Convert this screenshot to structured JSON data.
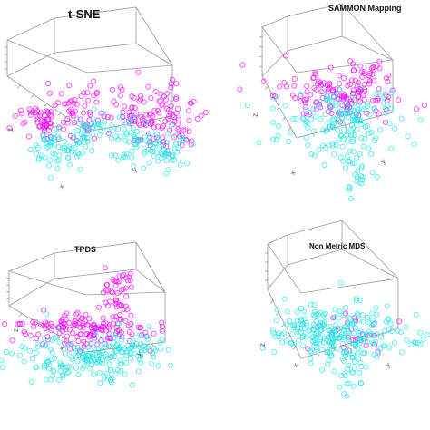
{
  "figure": {
    "background": "#ffffff"
  },
  "colors": {
    "class_a": "#ff00ff",
    "class_b": "#1fe6e6"
  },
  "chart_data": [
    {
      "type": "scatter",
      "title": "t-SNE",
      "xlabel": "x",
      "ylabel": "y",
      "zlabel": "z",
      "projection": "3d",
      "grid": false,
      "legend": "none",
      "series": [
        {
          "color": "#ff00ff",
          "clusters": [
            {
              "cx": 0.22,
              "cy": 0.56,
              "sx": 0.07,
              "sy": 0.06,
              "n": 70
            },
            {
              "cx": 0.4,
              "cy": 0.53,
              "sx": 0.05,
              "sy": 0.07,
              "n": 40
            },
            {
              "cx": 0.62,
              "cy": 0.52,
              "sx": 0.05,
              "sy": 0.06,
              "n": 40
            },
            {
              "cx": 0.79,
              "cy": 0.55,
              "sx": 0.08,
              "sy": 0.07,
              "n": 80
            }
          ]
        },
        {
          "color": "#1fe6e6",
          "clusters": [
            {
              "cx": 0.27,
              "cy": 0.68,
              "sx": 0.06,
              "sy": 0.05,
              "n": 60
            },
            {
              "cx": 0.42,
              "cy": 0.63,
              "sx": 0.05,
              "sy": 0.05,
              "n": 40
            },
            {
              "cx": 0.6,
              "cy": 0.65,
              "sx": 0.05,
              "sy": 0.06,
              "n": 40
            },
            {
              "cx": 0.75,
              "cy": 0.68,
              "sx": 0.07,
              "sy": 0.05,
              "n": 60
            }
          ]
        }
      ]
    },
    {
      "type": "scatter",
      "title": "SAMMON Mapping",
      "xlabel": "x",
      "ylabel": "y",
      "zlabel": "z",
      "projection": "3d",
      "grid": false,
      "legend": "none",
      "series": [
        {
          "color": "#ff00ff",
          "clusters": [
            {
              "cx": 0.58,
              "cy": 0.44,
              "sx": 0.14,
              "sy": 0.06,
              "n": 140
            },
            {
              "cx": 0.72,
              "cy": 0.32,
              "sx": 0.05,
              "sy": 0.03,
              "n": 15
            }
          ]
        },
        {
          "color": "#1fe6e6",
          "clusters": [
            {
              "cx": 0.58,
              "cy": 0.58,
              "sx": 0.14,
              "sy": 0.09,
              "n": 170
            },
            {
              "cx": 0.64,
              "cy": 0.8,
              "sx": 0.04,
              "sy": 0.05,
              "n": 20
            }
          ]
        }
      ]
    },
    {
      "type": "scatter",
      "title": "TPDS",
      "xlabel": "x",
      "ylabel": "y",
      "zlabel": "z",
      "projection": "3d",
      "grid": false,
      "legend": "none",
      "series": [
        {
          "color": "#ff00ff",
          "clusters": [
            {
              "cx": 0.4,
              "cy": 0.53,
              "sx": 0.16,
              "sy": 0.04,
              "n": 150
            },
            {
              "cx": 0.53,
              "cy": 0.4,
              "sx": 0.04,
              "sy": 0.07,
              "n": 35
            },
            {
              "cx": 0.57,
              "cy": 0.32,
              "sx": 0.05,
              "sy": 0.03,
              "n": 15
            }
          ]
        },
        {
          "color": "#1fe6e6",
          "clusters": [
            {
              "cx": 0.38,
              "cy": 0.66,
              "sx": 0.16,
              "sy": 0.06,
              "n": 160
            },
            {
              "cx": 0.62,
              "cy": 0.63,
              "sx": 0.08,
              "sy": 0.05,
              "n": 50
            }
          ]
        }
      ]
    },
    {
      "type": "scatter",
      "title": "Non Metric MDS",
      "xlabel": "x",
      "ylabel": "y",
      "zlabel": "z",
      "projection": "3d",
      "grid": false,
      "legend": "none",
      "series": [
        {
          "color": "#ff00ff",
          "clusters": [
            {
              "cx": 0.63,
              "cy": 0.55,
              "sx": 0.12,
              "sy": 0.05,
              "n": 25
            }
          ]
        },
        {
          "color": "#1fe6e6",
          "clusters": [
            {
              "cx": 0.57,
              "cy": 0.55,
              "sx": 0.15,
              "sy": 0.07,
              "n": 260
            },
            {
              "cx": 0.64,
              "cy": 0.74,
              "sx": 0.03,
              "sy": 0.05,
              "n": 20
            }
          ]
        }
      ]
    }
  ]
}
